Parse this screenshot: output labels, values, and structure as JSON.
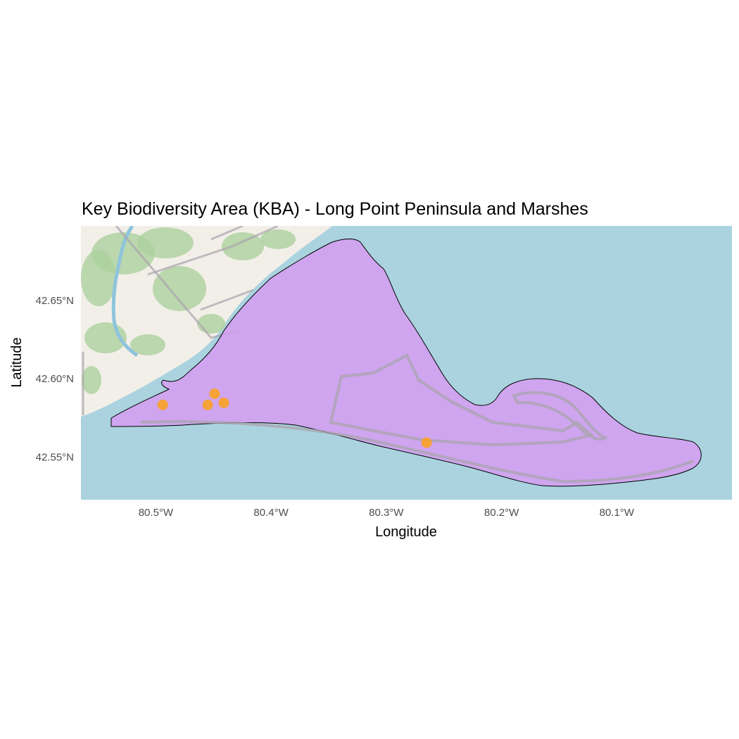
{
  "title": "Key Biodiversity Area (KBA) - Long Point Peninsula and Marshes",
  "x_axis": {
    "label": "Longitude",
    "range": [
      -80.565,
      -80.0
    ],
    "ticks": [
      {
        "value": -80.5,
        "label": "80.5°W"
      },
      {
        "value": -80.4,
        "label": "80.4°W"
      },
      {
        "value": -80.3,
        "label": "80.3°W"
      },
      {
        "value": -80.2,
        "label": "80.2°W"
      },
      {
        "value": -80.1,
        "label": "80.1°W"
      }
    ]
  },
  "y_axis": {
    "label": "Latitude",
    "range": [
      42.5227,
      42.6977
    ],
    "ticks": [
      {
        "value": 42.65,
        "label": "42.65°N"
      },
      {
        "value": 42.6,
        "label": "42.60°N"
      },
      {
        "value": 42.55,
        "label": "42.55°N"
      }
    ]
  },
  "colors": {
    "water": "#aad3df",
    "land": "#f2efe9",
    "forest": "#add19e",
    "kba_fill": "#d39ef0",
    "kba_outline": "#000000",
    "points": "#f7a12e",
    "boundary": "#a9a4ad",
    "river": "#8fc4dc"
  },
  "observations": [
    {
      "lon": -80.494,
      "lat": 42.5833
    },
    {
      "lon": -80.455,
      "lat": 42.5833
    },
    {
      "lon": -80.449,
      "lat": 42.5904
    },
    {
      "lon": -80.441,
      "lat": 42.5846
    },
    {
      "lon": -80.265,
      "lat": 42.5592
    }
  ]
}
